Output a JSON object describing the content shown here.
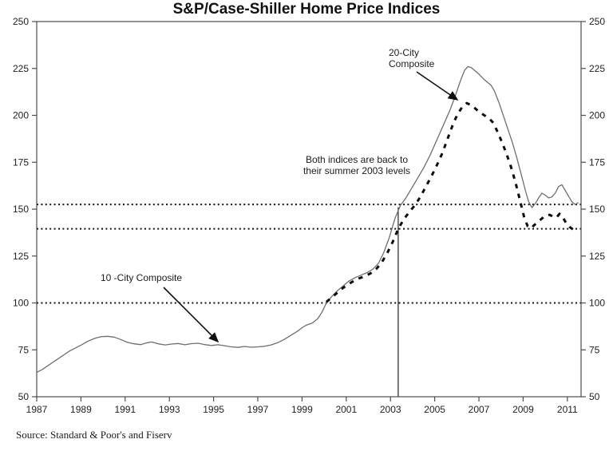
{
  "source": "Source: Standard & Poor's and Fiserv",
  "chart_data": {
    "type": "line",
    "title": "S&P/Case-Shiller Home Price Indices",
    "xlabel": "",
    "ylabel": "",
    "xlim": [
      1987,
      2011.62
    ],
    "ylim": [
      50,
      250
    ],
    "x_ticks": [
      1987,
      1989,
      1991,
      1993,
      1995,
      1997,
      1999,
      2001,
      2003,
      2005,
      2007,
      2009,
      2011
    ],
    "y_ticks": [
      50,
      75,
      100,
      125,
      150,
      175,
      200,
      225,
      250
    ],
    "y_axis_sides": [
      "left",
      "right"
    ],
    "grid": false,
    "legend_position": "none",
    "reference_lines": {
      "horizontal_dotted_values": [
        152.5,
        139.5,
        100
      ],
      "vertical_solid_year": 2003.35,
      "vertical_line_top_value": 151
    },
    "annotations": {
      "twenty_city": {
        "line1": "20-City",
        "line2": "Composite"
      },
      "both_indices": {
        "line1": "Both indices are back to",
        "line2": "their summer 2003 levels"
      },
      "ten_city": {
        "label": "10 -City Composite"
      }
    },
    "series": [
      {
        "name": "10-City Composite",
        "line_style": "solid",
        "color": "#6e6e6e",
        "points": [
          [
            1987.0,
            63
          ],
          [
            1987.25,
            64.5
          ],
          [
            1987.5,
            66.5
          ],
          [
            1987.75,
            68.5
          ],
          [
            1988.0,
            70.5
          ],
          [
            1988.25,
            72.5
          ],
          [
            1988.5,
            74.5
          ],
          [
            1988.75,
            76
          ],
          [
            1989.0,
            77.5
          ],
          [
            1989.3,
            79.5
          ],
          [
            1989.6,
            81
          ],
          [
            1989.9,
            82
          ],
          [
            1990.2,
            82.2
          ],
          [
            1990.5,
            81.8
          ],
          [
            1990.8,
            80.5
          ],
          [
            1991.1,
            79
          ],
          [
            1991.4,
            78.2
          ],
          [
            1991.7,
            77.8
          ],
          [
            1992.0,
            78.8
          ],
          [
            1992.2,
            79.2
          ],
          [
            1992.5,
            78.2
          ],
          [
            1992.8,
            77.6
          ],
          [
            1993.1,
            78.1
          ],
          [
            1993.4,
            78.4
          ],
          [
            1993.7,
            77.7
          ],
          [
            1994.0,
            78.3
          ],
          [
            1994.3,
            78.5
          ],
          [
            1994.6,
            77.8
          ],
          [
            1994.9,
            77.3
          ],
          [
            1995.2,
            77.7
          ],
          [
            1995.5,
            77.2
          ],
          [
            1995.8,
            76.6
          ],
          [
            1996.1,
            76.3
          ],
          [
            1996.4,
            76.8
          ],
          [
            1996.7,
            76.4
          ],
          [
            1997.0,
            76.6
          ],
          [
            1997.3,
            76.9
          ],
          [
            1997.6,
            77.6
          ],
          [
            1997.9,
            78.8
          ],
          [
            1998.2,
            80.6
          ],
          [
            1998.5,
            82.8
          ],
          [
            1998.8,
            85
          ],
          [
            1999.0,
            86.8
          ],
          [
            1999.2,
            88.2
          ],
          [
            1999.45,
            89.2
          ],
          [
            1999.7,
            91.5
          ],
          [
            1999.9,
            95
          ],
          [
            2000.1,
            100
          ],
          [
            2000.35,
            103.5
          ],
          [
            2000.6,
            106.5
          ],
          [
            2000.85,
            109
          ],
          [
            2001.1,
            111.5
          ],
          [
            2001.4,
            113.5
          ],
          [
            2001.7,
            115
          ],
          [
            2001.95,
            116.2
          ],
          [
            2002.2,
            118
          ],
          [
            2002.45,
            121
          ],
          [
            2002.7,
            127
          ],
          [
            2002.95,
            135
          ],
          [
            2003.2,
            145
          ],
          [
            2003.45,
            152
          ],
          [
            2003.7,
            156
          ],
          [
            2003.95,
            161
          ],
          [
            2004.2,
            166
          ],
          [
            2004.5,
            172
          ],
          [
            2004.8,
            179
          ],
          [
            2005.1,
            187
          ],
          [
            2005.4,
            195
          ],
          [
            2005.7,
            203
          ],
          [
            2005.95,
            211
          ],
          [
            2006.15,
            218
          ],
          [
            2006.35,
            224
          ],
          [
            2006.5,
            226
          ],
          [
            2006.65,
            225.5
          ],
          [
            2006.8,
            224
          ],
          [
            2007.0,
            222
          ],
          [
            2007.2,
            219.5
          ],
          [
            2007.4,
            217.5
          ],
          [
            2007.55,
            216
          ],
          [
            2007.7,
            213
          ],
          [
            2007.9,
            207
          ],
          [
            2008.1,
            200
          ],
          [
            2008.3,
            193
          ],
          [
            2008.5,
            186
          ],
          [
            2008.7,
            178
          ],
          [
            2008.9,
            169
          ],
          [
            2009.1,
            160
          ],
          [
            2009.25,
            154
          ],
          [
            2009.4,
            150.8
          ],
          [
            2009.55,
            153
          ],
          [
            2009.7,
            156
          ],
          [
            2009.85,
            158.5
          ],
          [
            2010.0,
            157.5
          ],
          [
            2010.15,
            156
          ],
          [
            2010.3,
            156.5
          ],
          [
            2010.45,
            158.5
          ],
          [
            2010.6,
            162
          ],
          [
            2010.75,
            163
          ],
          [
            2010.9,
            160
          ],
          [
            2011.05,
            157
          ],
          [
            2011.2,
            154
          ],
          [
            2011.35,
            152.5
          ],
          [
            2011.5,
            153.5
          ]
        ]
      },
      {
        "name": "20-City Composite",
        "line_style": "dashed",
        "color": "#0d0d0d",
        "points": [
          [
            2000.1,
            100.5
          ],
          [
            2000.35,
            103
          ],
          [
            2000.6,
            105.5
          ],
          [
            2000.85,
            108
          ],
          [
            2001.1,
            110
          ],
          [
            2001.35,
            111.8
          ],
          [
            2001.6,
            113.2
          ],
          [
            2001.85,
            114.3
          ],
          [
            2002.1,
            115.8
          ],
          [
            2002.35,
            118
          ],
          [
            2002.6,
            121.5
          ],
          [
            2002.85,
            126.5
          ],
          [
            2003.1,
            132.5
          ],
          [
            2003.35,
            139.5
          ],
          [
            2003.6,
            144.5
          ],
          [
            2003.85,
            148.5
          ],
          [
            2004.1,
            152
          ],
          [
            2004.35,
            156.5
          ],
          [
            2004.6,
            162
          ],
          [
            2004.85,
            167.5
          ],
          [
            2005.1,
            173.5
          ],
          [
            2005.35,
            180
          ],
          [
            2005.6,
            188
          ],
          [
            2005.85,
            196
          ],
          [
            2006.05,
            201
          ],
          [
            2006.25,
            204.5
          ],
          [
            2006.45,
            206.5
          ],
          [
            2006.65,
            205.5
          ],
          [
            2006.85,
            203.5
          ],
          [
            2007.05,
            201.5
          ],
          [
            2007.25,
            200
          ],
          [
            2007.45,
            198.5
          ],
          [
            2007.65,
            196
          ],
          [
            2007.85,
            191
          ],
          [
            2008.05,
            185.5
          ],
          [
            2008.25,
            179.5
          ],
          [
            2008.45,
            172.5
          ],
          [
            2008.65,
            164.5
          ],
          [
            2008.85,
            155
          ],
          [
            2009.05,
            145.5
          ],
          [
            2009.2,
            141
          ],
          [
            2009.35,
            139.8
          ],
          [
            2009.5,
            141.5
          ],
          [
            2009.65,
            143
          ],
          [
            2009.8,
            144.5
          ],
          [
            2010.0,
            146.5
          ],
          [
            2010.2,
            147
          ],
          [
            2010.35,
            146
          ],
          [
            2010.5,
            145.5
          ],
          [
            2010.65,
            147.5
          ],
          [
            2010.8,
            145.5
          ],
          [
            2010.95,
            142.5
          ],
          [
            2011.1,
            140.5
          ],
          [
            2011.25,
            139.2
          ],
          [
            2011.4,
            139.8
          ]
        ]
      }
    ]
  }
}
